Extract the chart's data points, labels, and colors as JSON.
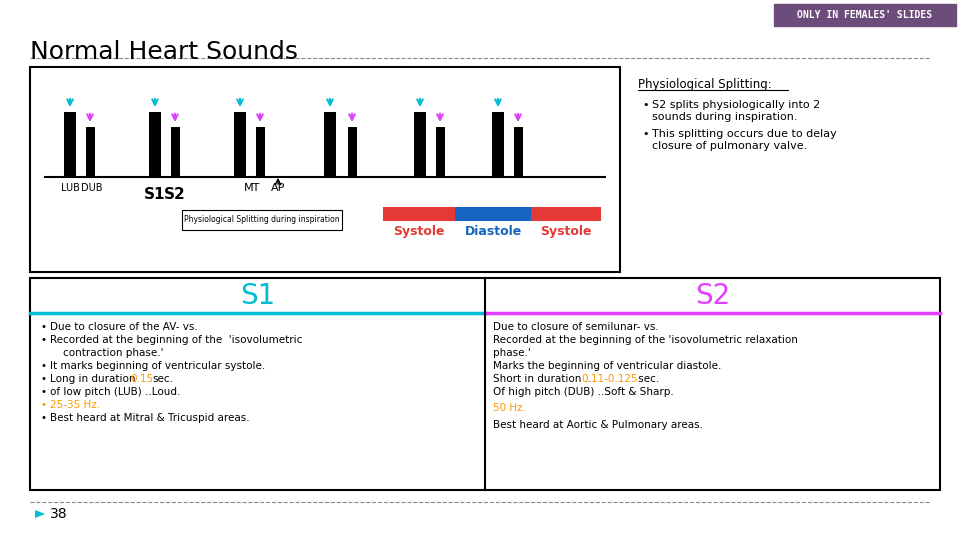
{
  "title": "Normal Heart Sounds",
  "bg_color": "#ffffff",
  "header_badge_text": "ONLY IN FEMALES' SLIDES",
  "header_badge_bg": "#6b4c7a",
  "header_badge_text_color": "#ffffff",
  "title_color": "#000000",
  "title_fontsize": 18,
  "divider_color": "#888888",
  "physio_title": "Physiological Splitting:",
  "physio_bullets": [
    "S2 splits physiologically into 2\nsounds during inspiration.",
    "This splitting occurs due to delay\nclosure of pulmonary valve."
  ],
  "s1_header": "S1",
  "s2_header": "S2",
  "s1_color": "#00bcd4",
  "s2_color": "#e040fb",
  "table_border_color": "#000000",
  "table_bg": "#ffffff",
  "s1_bullets": [
    "Due to closure of the AV- vs.",
    "Recorded at the beginning of the  'isovolumetric",
    "    contraction phase.'",
    "Long in duration 0.15sec.",
    "of low pitch (LUB) .. Loud.",
    "25-35 Hz.",
    "Best heard at Mitral & Tricuspid areas."
  ],
  "s1_highlight_color": "#ff9800",
  "s2_text_lines": [
    "Due to closure of semilunar- vs.",
    "Recorded at the beginning of the 'isovolumetric relaxation",
    "phase.'",
    "Marks the beginning of ventricular diastole.",
    "Short in duration .. 0.11-0.125 sec.",
    "Of high pitch (DUB) ..Soft & Sharp."
  ],
  "s2_hz_line": "50 Hz.",
  "s2_best_heard": "Best heard at Aortic & Pulmonary areas.",
  "s2_highlight_color": "#ff9800",
  "footer_number": "38",
  "footer_arrow_color": "#00bcd4",
  "image_box_border": "#000000",
  "image_bg": "#ffffff",
  "waveform_bar_color": "#000000",
  "cyan_arrow_color": "#00bcd4",
  "pink_arrow_color": "#e040fb",
  "red_bar_color": "#e53935",
  "blue_bar_color": "#1565c0",
  "systole_color": "#e53935",
  "diastole_color": "#1565c0"
}
